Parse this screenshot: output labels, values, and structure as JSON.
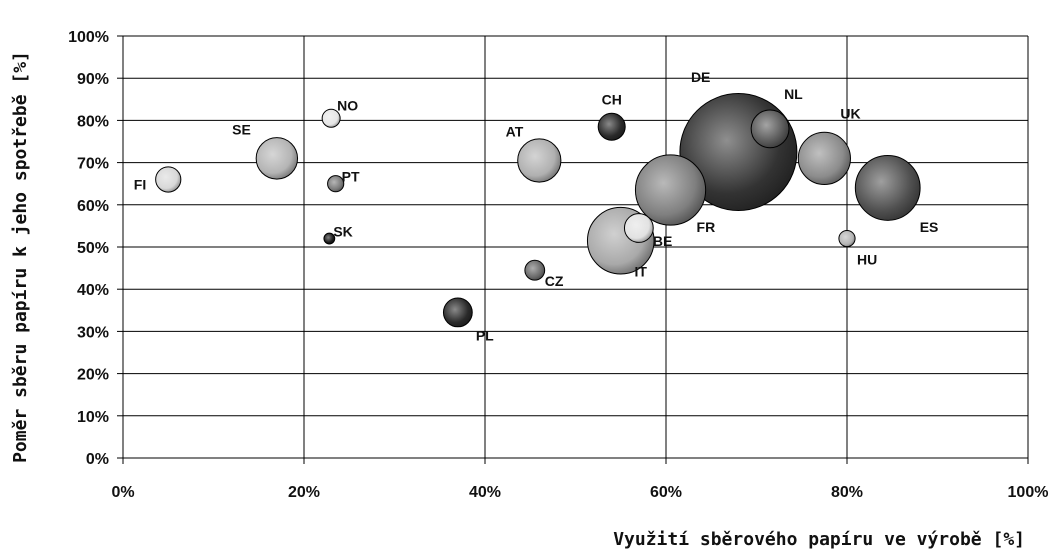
{
  "chart_data": {
    "type": "bubble",
    "xlabel": "Využití sběrového papíru ve výrobě [%]",
    "ylabel": "Poměr sběru papíru k jeho spotřebě [%]",
    "xlim": [
      0,
      100
    ],
    "ylim": [
      0,
      100
    ],
    "x_ticks": [
      "0%",
      "20%",
      "40%",
      "60%",
      "80%",
      "100%"
    ],
    "y_ticks": [
      "0%",
      "10%",
      "20%",
      "30%",
      "40%",
      "50%",
      "60%",
      "70%",
      "80%",
      "90%",
      "100%"
    ],
    "grid": true,
    "points": [
      {
        "label": "FI",
        "x": 5,
        "y": 66,
        "size": 1.4,
        "color": "#d8d8d8"
      },
      {
        "label": "SE",
        "x": 17,
        "y": 71,
        "size": 2.3,
        "color": "#b4b4b4"
      },
      {
        "label": "NO",
        "x": 23,
        "y": 80.5,
        "size": 1.0,
        "color": "#e6e6e6"
      },
      {
        "label": "PT",
        "x": 23.5,
        "y": 65,
        "size": 0.9,
        "color": "#7a7a7a"
      },
      {
        "label": "SK",
        "x": 22.8,
        "y": 52,
        "size": 0.6,
        "color": "#1a1a1a"
      },
      {
        "label": "PL",
        "x": 37,
        "y": 34.5,
        "size": 1.6,
        "color": "#2a2a2a"
      },
      {
        "label": "AT",
        "x": 46,
        "y": 70.5,
        "size": 2.4,
        "color": "#b0b0b0"
      },
      {
        "label": "CZ",
        "x": 45.5,
        "y": 44.5,
        "size": 1.1,
        "color": "#6a6a6a"
      },
      {
        "label": "CH",
        "x": 54,
        "y": 78.5,
        "size": 1.5,
        "color": "#2a2a2a"
      },
      {
        "label": "IT",
        "x": 55,
        "y": 51.5,
        "size": 3.7,
        "color": "#a9a9a9"
      },
      {
        "label": "BE",
        "x": 57,
        "y": 54.5,
        "size": 1.6,
        "color": "#e2e2e2"
      },
      {
        "label": "FR",
        "x": 60.5,
        "y": 63.5,
        "size": 3.9,
        "color": "#7f7f7f"
      },
      {
        "label": "DE",
        "x": 68,
        "y": 72.5,
        "size": 6.5,
        "color": "#333333"
      },
      {
        "label": "NL",
        "x": 71.5,
        "y": 78,
        "size": 2.1,
        "color": "#595959"
      },
      {
        "label": "UK",
        "x": 77.5,
        "y": 71,
        "size": 2.9,
        "color": "#8c8c8c"
      },
      {
        "label": "ES",
        "x": 84.5,
        "y": 64,
        "size": 3.6,
        "color": "#505050"
      },
      {
        "label": "HU",
        "x": 80,
        "y": 52,
        "size": 0.9,
        "color": "#b5b5b5"
      }
    ]
  }
}
